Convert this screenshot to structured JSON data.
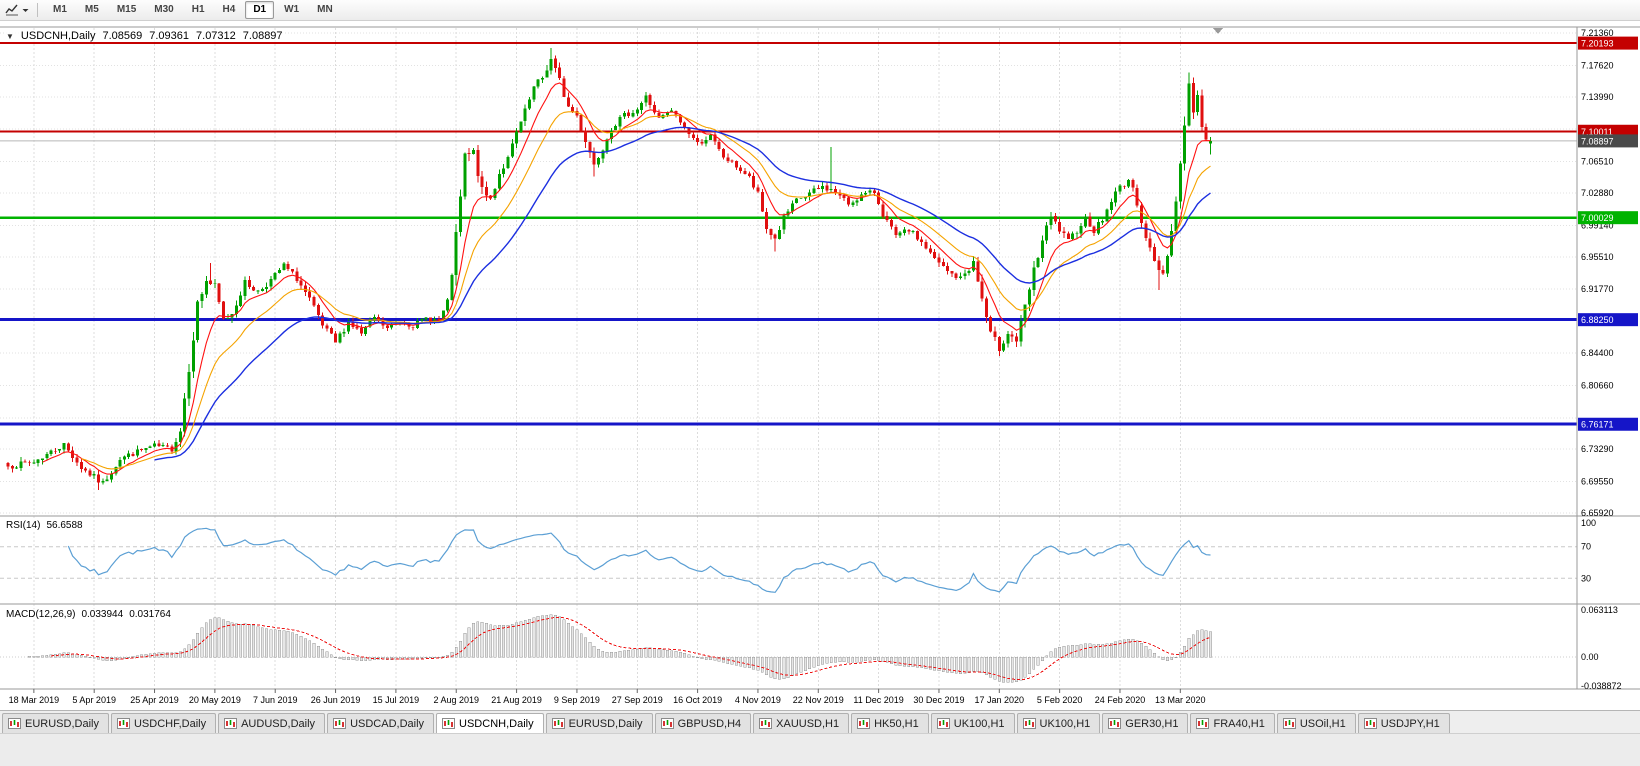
{
  "toolbar": {
    "timeframes": [
      {
        "label": "M1",
        "active": false
      },
      {
        "label": "M5",
        "active": false
      },
      {
        "label": "M15",
        "active": false
      },
      {
        "label": "M30",
        "active": false
      },
      {
        "label": "H1",
        "active": false
      },
      {
        "label": "H4",
        "active": false
      },
      {
        "label": "D1",
        "active": true
      },
      {
        "label": "W1",
        "active": false
      },
      {
        "label": "MN",
        "active": false
      }
    ]
  },
  "chart_header": {
    "symbol": "USDCNH,Daily",
    "open": "7.08569",
    "high": "7.09361",
    "low": "7.07312",
    "close": "7.08897"
  },
  "indicators": {
    "rsi": {
      "label": "RSI(14)",
      "value": "56.6588",
      "axis_labels": [
        {
          "label": "100",
          "v": 100
        },
        {
          "label": "70",
          "v": 70
        },
        {
          "label": "30",
          "v": 30
        }
      ],
      "levels": [
        70,
        30
      ]
    },
    "macd": {
      "label": "MACD(12,26,9)",
      "main_value": "0.033944",
      "signal_value": "0.031764",
      "axis_max": 0.063113,
      "axis_min": -0.038872,
      "axis_labels": [
        {
          "label": "0.063113",
          "v": 0.063113
        },
        {
          "label": "0.00",
          "v": 0
        },
        {
          "label": "-0.038872",
          "v": -0.038872
        }
      ]
    }
  },
  "price_axis": {
    "ticks": [
      {
        "label": "7.21360",
        "v": 7.2136
      },
      {
        "label": "7.17620",
        "v": 7.1762
      },
      {
        "label": "7.13990",
        "v": 7.1399
      },
      {
        "label": "7.06510",
        "v": 7.0651
      },
      {
        "label": "7.02880",
        "v": 7.0288
      },
      {
        "label": "6.99140",
        "v": 6.9914
      },
      {
        "label": "6.95510",
        "v": 6.9551
      },
      {
        "label": "6.91770",
        "v": 6.9177
      },
      {
        "label": "6.84400",
        "v": 6.844
      },
      {
        "label": "6.80660",
        "v": 6.8066
      },
      {
        "label": "6.73290",
        "v": 6.7329
      },
      {
        "label": "6.69550",
        "v": 6.6955
      },
      {
        "label": "6.65920",
        "v": 6.6592
      }
    ],
    "grid_extra": [
      7.1025,
      6.8815,
      6.7692
    ],
    "badges": [
      {
        "label": "7.20193",
        "v": 7.20193,
        "color": "#c40000"
      },
      {
        "label": "7.10011",
        "v": 7.10011,
        "color": "#c40000"
      },
      {
        "label": "7.08897",
        "v": 7.08897,
        "color": "#4a4a4a"
      },
      {
        "label": "7.00029",
        "v": 7.00029,
        "color": "#00b300"
      },
      {
        "label": "6.88250",
        "v": 6.8825,
        "color": "#1515c8"
      },
      {
        "label": "6.76171",
        "v": 6.76171,
        "color": "#1515c8"
      }
    ]
  },
  "x_axis": {
    "labels": [
      {
        "label": "18 Mar 2019",
        "i": 6
      },
      {
        "label": "5 Apr 2019",
        "i": 20
      },
      {
        "label": "25 Apr 2019",
        "i": 34
      },
      {
        "label": "20 May 2019",
        "i": 48
      },
      {
        "label": "7 Jun 2019",
        "i": 62
      },
      {
        "label": "26 Jun 2019",
        "i": 76
      },
      {
        "label": "15 Jul 2019",
        "i": 90
      },
      {
        "label": "2 Aug 2019",
        "i": 104
      },
      {
        "label": "21 Aug 2019",
        "i": 118
      },
      {
        "label": "9 Sep 2019",
        "i": 132
      },
      {
        "label": "27 Sep 2019",
        "i": 146
      },
      {
        "label": "16 Oct 2019",
        "i": 160
      },
      {
        "label": "4 Nov 2019",
        "i": 174
      },
      {
        "label": "22 Nov 2019",
        "i": 188
      },
      {
        "label": "11 Dec 2019",
        "i": 202
      },
      {
        "label": "30 Dec 2019",
        "i": 216
      },
      {
        "label": "17 Jan 2020",
        "i": 230
      },
      {
        "label": "5 Feb 2020",
        "i": 244
      },
      {
        "label": "24 Feb 2020",
        "i": 258
      },
      {
        "label": "13 Mar 2020",
        "i": 272
      }
    ]
  },
  "chart_data": {
    "type": "candlestick",
    "symbol": "USDCNH",
    "timeframe": "Daily",
    "bar_count": 280,
    "seed": 7,
    "price_min": 6.6592,
    "price_max": 7.2136,
    "current_price": 7.08897,
    "last_bar": {
      "o": 7.08569,
      "h": 7.09361,
      "l": 7.07312,
      "c": 7.08897
    },
    "hlines": [
      {
        "v": 7.20193,
        "color": "#c40000",
        "w": 2
      },
      {
        "v": 7.10011,
        "color": "#c40000",
        "w": 2
      },
      {
        "v": 7.00029,
        "color": "#00b300",
        "w": 2.5
      },
      {
        "v": 6.8825,
        "color": "#1515c8",
        "w": 3
      },
      {
        "v": 6.76171,
        "color": "#1515c8",
        "w": 3
      }
    ],
    "overlays": [
      {
        "name": "ma-fast",
        "period": 8,
        "color": "#ff1111",
        "width": 1.1
      },
      {
        "name": "ma-mid",
        "period": 17,
        "color": "#f5a300",
        "width": 1.1
      },
      {
        "name": "ma-slow",
        "period": 34,
        "color": "#1c2fe0",
        "width": 1.4
      }
    ],
    "close_anchors": [
      [
        0,
        6.713,
        1.0
      ],
      [
        6,
        6.718,
        1.0
      ],
      [
        10,
        6.73,
        1.0
      ],
      [
        13,
        6.738,
        1.0
      ],
      [
        17,
        6.712,
        1.2
      ],
      [
        20,
        6.7,
        1.2
      ],
      [
        22,
        6.693,
        1.2
      ],
      [
        26,
        6.722,
        1.0
      ],
      [
        30,
        6.73,
        0.9
      ],
      [
        34,
        6.737,
        0.8
      ],
      [
        38,
        6.733,
        0.9
      ],
      [
        40,
        6.755,
        1.6
      ],
      [
        42,
        6.83,
        2.4
      ],
      [
        44,
        6.9,
        2.0
      ],
      [
        46,
        6.928,
        1.6
      ],
      [
        48,
        6.92,
        1.4
      ],
      [
        50,
        6.882,
        1.4
      ],
      [
        52,
        6.89,
        1.2
      ],
      [
        55,
        6.925,
        1.2
      ],
      [
        58,
        6.915,
        1.0
      ],
      [
        61,
        6.928,
        1.0
      ],
      [
        64,
        6.945,
        1.0
      ],
      [
        67,
        6.93,
        1.0
      ],
      [
        70,
        6.905,
        1.2
      ],
      [
        73,
        6.875,
        1.2
      ],
      [
        76,
        6.856,
        1.2
      ],
      [
        79,
        6.88,
        1.0
      ],
      [
        82,
        6.866,
        1.0
      ],
      [
        85,
        6.885,
        0.9
      ],
      [
        88,
        6.872,
        0.9
      ],
      [
        91,
        6.88,
        0.8
      ],
      [
        94,
        6.876,
        0.8
      ],
      [
        97,
        6.884,
        0.8
      ],
      [
        100,
        6.882,
        0.9
      ],
      [
        102,
        6.9,
        1.6
      ],
      [
        104,
        6.975,
        2.6
      ],
      [
        106,
        7.07,
        2.2
      ],
      [
        108,
        7.075,
        1.6
      ],
      [
        110,
        7.03,
        1.6
      ],
      [
        112,
        7.022,
        1.4
      ],
      [
        114,
        7.052,
        1.4
      ],
      [
        116,
        7.068,
        1.2
      ],
      [
        118,
        7.098,
        1.2
      ],
      [
        120,
        7.122,
        1.2
      ],
      [
        122,
        7.15,
        1.2
      ],
      [
        124,
        7.162,
        1.2
      ],
      [
        126,
        7.183,
        1.4
      ],
      [
        128,
        7.158,
        1.4
      ],
      [
        130,
        7.128,
        1.4
      ],
      [
        132,
        7.118,
        1.2
      ],
      [
        134,
        7.09,
        1.4
      ],
      [
        136,
        7.062,
        1.4
      ],
      [
        138,
        7.082,
        1.2
      ],
      [
        140,
        7.105,
        1.2
      ],
      [
        143,
        7.118,
        1.0
      ],
      [
        146,
        7.126,
        1.0
      ],
      [
        148,
        7.14,
        1.0
      ],
      [
        151,
        7.114,
        1.0
      ],
      [
        154,
        7.124,
        0.9
      ],
      [
        157,
        7.104,
        0.9
      ],
      [
        160,
        7.086,
        0.9
      ],
      [
        163,
        7.094,
        0.9
      ],
      [
        166,
        7.07,
        0.9
      ],
      [
        169,
        7.06,
        0.9
      ],
      [
        172,
        7.046,
        1.0
      ],
      [
        174,
        7.026,
        1.3
      ],
      [
        176,
        6.988,
        1.5
      ],
      [
        178,
        6.976,
        1.3
      ],
      [
        180,
        7.0,
        1.1
      ],
      [
        183,
        7.02,
        1.0
      ],
      [
        186,
        7.028,
        1.1
      ],
      [
        189,
        7.036,
        1.0
      ],
      [
        192,
        7.03,
        0.9
      ],
      [
        195,
        7.016,
        0.9
      ],
      [
        198,
        7.026,
        0.9
      ],
      [
        201,
        7.03,
        0.9
      ],
      [
        203,
        7.005,
        1.1
      ],
      [
        206,
        6.978,
        1.1
      ],
      [
        209,
        6.986,
        1.0
      ],
      [
        212,
        6.972,
        1.0
      ],
      [
        215,
        6.952,
        1.1
      ],
      [
        218,
        6.938,
        1.1
      ],
      [
        221,
        6.93,
        1.1
      ],
      [
        224,
        6.948,
        1.3
      ],
      [
        226,
        6.906,
        1.8
      ],
      [
        228,
        6.864,
        1.8
      ],
      [
        230,
        6.85,
        1.5
      ],
      [
        232,
        6.868,
        1.3
      ],
      [
        234,
        6.858,
        1.3
      ],
      [
        236,
        6.896,
        1.6
      ],
      [
        238,
        6.938,
        1.6
      ],
      [
        240,
        6.974,
        1.6
      ],
      [
        242,
        7.0,
        1.4
      ],
      [
        244,
        6.986,
        1.2
      ],
      [
        246,
        6.972,
        1.2
      ],
      [
        248,
        6.986,
        1.1
      ],
      [
        250,
        7.0,
        1.1
      ],
      [
        252,
        6.986,
        1.1
      ],
      [
        254,
        6.998,
        1.1
      ],
      [
        256,
        7.02,
        1.1
      ],
      [
        258,
        7.036,
        1.1
      ],
      [
        260,
        7.044,
        1.1
      ],
      [
        262,
        7.018,
        1.3
      ],
      [
        264,
        6.978,
        1.5
      ],
      [
        266,
        6.948,
        1.5
      ],
      [
        268,
        6.936,
        1.3
      ],
      [
        270,
        6.985,
        1.8
      ],
      [
        271,
        7.02,
        1.8
      ],
      [
        272,
        7.062,
        2.0
      ],
      [
        273,
        7.112,
        2.2
      ],
      [
        274,
        7.152,
        1.8
      ],
      [
        275,
        7.124,
        1.6
      ],
      [
        276,
        7.14,
        1.4
      ],
      [
        277,
        7.102,
        1.4
      ],
      [
        278,
        7.094,
        1.0
      ],
      [
        279,
        7.08897,
        0.8
      ]
    ],
    "spikes": [
      {
        "i": 21,
        "low": 6.686
      },
      {
        "i": 47,
        "high": 6.948
      },
      {
        "i": 126,
        "high": 7.196
      },
      {
        "i": 136,
        "low": 7.048
      },
      {
        "i": 178,
        "low": 6.961
      },
      {
        "i": 191,
        "high": 7.082
      },
      {
        "i": 230,
        "low": 6.843
      },
      {
        "i": 267,
        "low": 6.917
      },
      {
        "i": 274,
        "high": 7.168
      }
    ],
    "colors": {
      "bull": "#00a000",
      "bear": "#e01010",
      "grid": "#e2e2e2",
      "vgrid": "#dcdcdc",
      "rsi_line": "#5b9fd4",
      "rsi_level": "#c8c8c8",
      "macd_hist_fill": "#e6e6e6",
      "macd_hist_stroke": "#979797",
      "macd_signal": "#ee1111",
      "current_price_line": "#b8b8b8",
      "frame": "#9a9a9a"
    }
  },
  "tabs": [
    {
      "label": "EURUSD,Daily",
      "active": false
    },
    {
      "label": "USDCHF,Daily",
      "active": false
    },
    {
      "label": "AUDUSD,Daily",
      "active": false
    },
    {
      "label": "USDCAD,Daily",
      "active": false
    },
    {
      "label": "USDCNH,Daily",
      "active": true
    },
    {
      "label": "EURUSD,Daily",
      "active": false
    },
    {
      "label": "GBPUSD,H4",
      "active": false
    },
    {
      "label": "XAUUSD,H1",
      "active": false
    },
    {
      "label": "HK50,H1",
      "active": false
    },
    {
      "label": "UK100,H1",
      "active": false
    },
    {
      "label": "UK100,H1",
      "active": false
    },
    {
      "label": "GER30,H1",
      "active": false
    },
    {
      "label": "FRA40,H1",
      "active": false
    },
    {
      "label": "USOil,H1",
      "active": false
    },
    {
      "label": "USDJPY,H1",
      "active": false
    }
  ]
}
